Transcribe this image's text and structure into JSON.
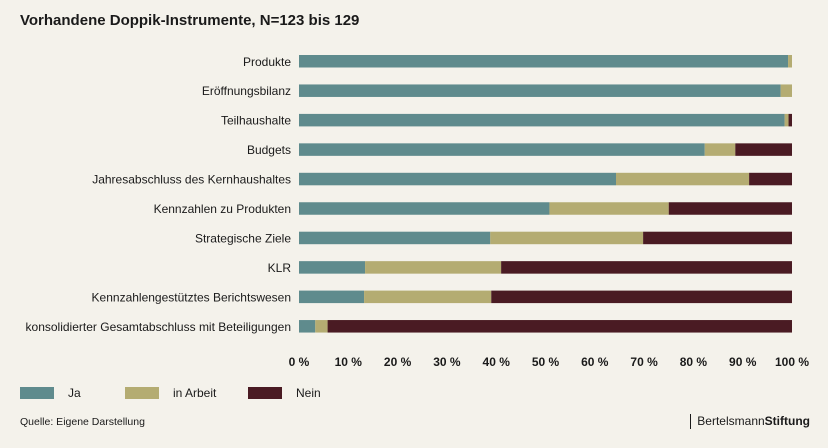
{
  "chart_data": {
    "type": "bar",
    "orientation": "horizontal",
    "stacked": true,
    "title": "Vorhandene Doppik-Instrumente, N=123 bis 129",
    "categories": [
      "Produkte",
      "Eröffnungsbilanz",
      "Teilhaushalte",
      "Budgets",
      "Jahresabschluss des Kernhaushaltes",
      "Kennzahlen zu Produkten",
      "Strategische Ziele",
      "KLR",
      "Kennzahlengestütztes Berichtswesen",
      "konsolidierter Gesamtabschluss mit Beteiligungen"
    ],
    "series": [
      {
        "name": "Ja",
        "color": "#5f8b8d",
        "values": [
          99.2,
          97.7,
          98.5,
          82.3,
          64.3,
          50.8,
          38.8,
          13.4,
          13.2,
          3.3
        ]
      },
      {
        "name": "in Arbeit",
        "color": "#b4ac72",
        "values": [
          0.8,
          2.3,
          0.8,
          6.2,
          27.0,
          24.2,
          31.0,
          27.6,
          25.8,
          2.5
        ]
      },
      {
        "name": "Nein",
        "color": "#4a1b23",
        "values": [
          0.0,
          0.0,
          0.7,
          11.5,
          8.7,
          25.0,
          30.2,
          59.0,
          61.0,
          94.2
        ]
      }
    ],
    "xlim": [
      0,
      100
    ],
    "xticks": [
      "0 %",
      "10 %",
      "20 %",
      "30 %",
      "40 %",
      "50 %",
      "60 %",
      "70 %",
      "80 %",
      "90 %",
      "100 %"
    ],
    "legend_position": "bottom-left",
    "grid": false
  },
  "footer": {
    "source": "Quelle: Eigene Darstellung",
    "brand_part1": "Bertelsmann",
    "brand_part2": "Stiftung"
  }
}
